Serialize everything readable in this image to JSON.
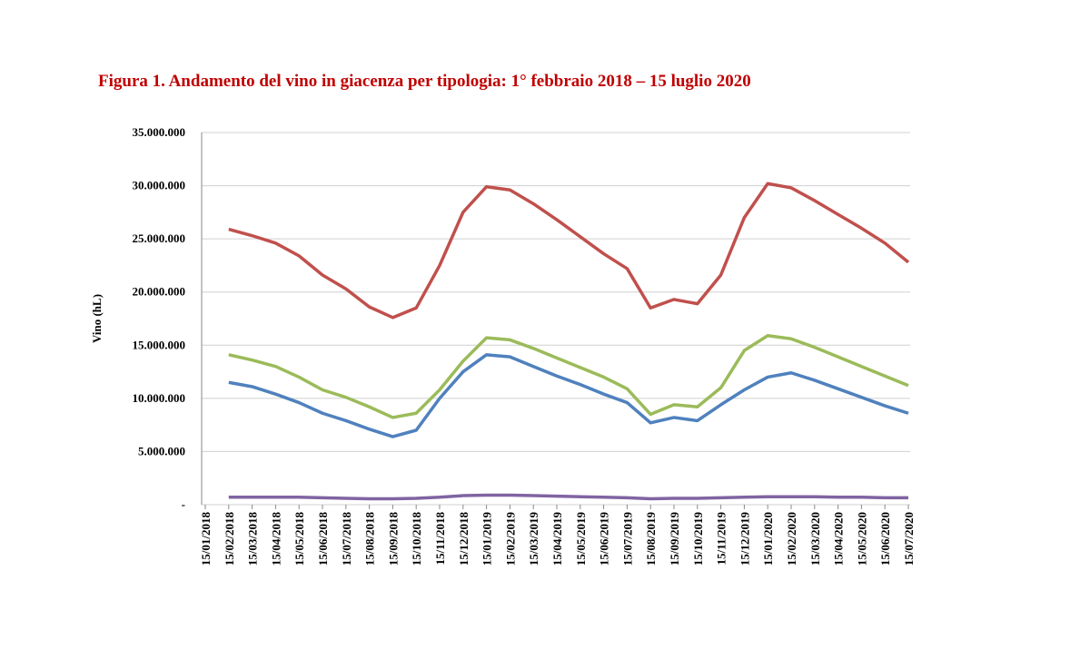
{
  "chart_data": {
    "type": "line",
    "title": "Figura 1. Andamento del vino in giacenza per tipologia: 1° febbraio 2018 – 15 luglio 2020",
    "y_label": "Vino (hL)",
    "categories": [
      "15/01/2018",
      "15/02/2018",
      "15/03/2018",
      "15/04/2018",
      "15/05/2018",
      "15/06/2018",
      "15/07/2018",
      "15/08/2018",
      "15/09/2018",
      "15/10/2018",
      "15/11/2018",
      "15/12/2018",
      "15/01/2019",
      "15/02/2019",
      "15/03/2019",
      "15/04/2019",
      "15/05/2019",
      "15/06/2019",
      "15/07/2019",
      "15/08/2019",
      "15/09/2019",
      "15/10/2019",
      "15/11/2019",
      "15/12/2019",
      "15/01/2020",
      "15/02/2020",
      "15/03/2020",
      "15/04/2020",
      "15/05/2020",
      "15/06/2020",
      "15/07/2020"
    ],
    "series": [
      {
        "color": "#c0504d",
        "values": [
          null,
          25900000,
          25300000,
          24600000,
          23400000,
          21600000,
          20300000,
          18600000,
          17600000,
          18500000,
          22500000,
          27500000,
          29900000,
          29600000,
          28300000,
          26800000,
          25200000,
          23600000,
          22200000,
          18500000,
          19300000,
          18900000,
          21600000,
          27000000,
          30200000,
          29800000,
          28600000,
          27300000,
          26000000,
          24600000,
          22800000
        ]
      },
      {
        "color": "#9bbb59",
        "values": [
          null,
          14100000,
          13600000,
          13000000,
          12000000,
          10800000,
          10100000,
          9200000,
          8200000,
          8600000,
          10800000,
          13500000,
          15700000,
          15500000,
          14700000,
          13800000,
          12900000,
          12000000,
          10900000,
          8500000,
          9400000,
          9200000,
          11000000,
          14500000,
          15900000,
          15600000,
          14800000,
          13900000,
          13000000,
          12100000,
          11200000
        ]
      },
      {
        "color": "#4f81bd",
        "values": [
          null,
          11500000,
          11100000,
          10400000,
          9600000,
          8600000,
          7900000,
          7100000,
          6400000,
          7000000,
          10000000,
          12500000,
          14100000,
          13900000,
          13000000,
          12100000,
          11300000,
          10400000,
          9600000,
          7700000,
          8200000,
          7900000,
          9400000,
          10800000,
          12000000,
          12400000,
          11700000,
          10900000,
          10100000,
          9300000,
          8600000
        ]
      },
      {
        "color": "#8064a2",
        "values": [
          null,
          700000,
          700000,
          700000,
          700000,
          650000,
          600000,
          550000,
          550000,
          600000,
          700000,
          850000,
          900000,
          900000,
          850000,
          800000,
          750000,
          700000,
          650000,
          550000,
          600000,
          600000,
          650000,
          700000,
          750000,
          750000,
          750000,
          700000,
          700000,
          650000,
          650000
        ]
      }
    ],
    "ylim": [
      0,
      35000000
    ],
    "yticks": [
      {
        "value": 0,
        "label": "-"
      },
      {
        "value": 5000000,
        "label": "5.000.000"
      },
      {
        "value": 10000000,
        "label": "10.000.000"
      },
      {
        "value": 15000000,
        "label": "15.000.000"
      },
      {
        "value": 20000000,
        "label": "20.000.000"
      },
      {
        "value": 25000000,
        "label": "25.000.000"
      },
      {
        "value": 30000000,
        "label": "30.000.000"
      },
      {
        "value": 35000000,
        "label": "35.000.000"
      }
    ],
    "grid": true
  }
}
